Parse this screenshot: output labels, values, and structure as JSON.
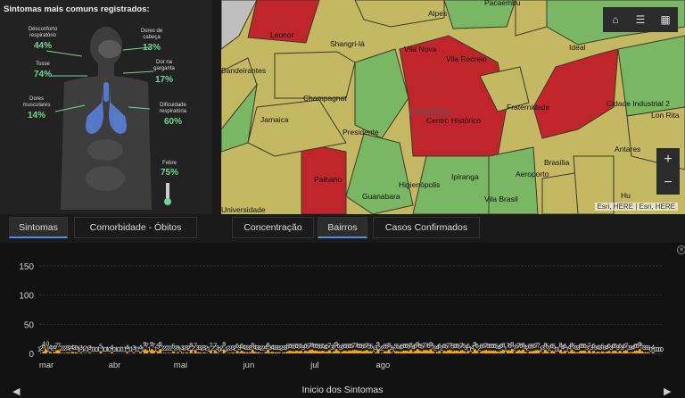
{
  "symptoms": {
    "title": "Sintomas mais comuns registrados:",
    "items": [
      {
        "label": "Desconforto respiratório",
        "value": "44%"
      },
      {
        "label": "Dores de cabeça",
        "value": "13%"
      },
      {
        "label": "Tosse",
        "value": "74%"
      },
      {
        "label": "Dor na garganta",
        "value": "17%"
      },
      {
        "label": "Dores musculares",
        "value": "14%"
      },
      {
        "label": "Dificuldade respiratória",
        "value": "60%"
      },
      {
        "label": "Febre",
        "value": "75%"
      }
    ]
  },
  "map": {
    "city_label": "Londrina",
    "neighborhoods": [
      "Alpes",
      "Pacaembu",
      "Leonor",
      "Shangri-lá",
      "Vila Nova",
      "Ideal",
      "Bandeirantes",
      "Vila Recreio",
      "Champagnat",
      "Fraternidade",
      "Cidade Industrial 2",
      "Lon Rita",
      "Jamaica",
      "Presidente",
      "Centro Histórico",
      "Antares",
      "Brasília",
      "Palhano",
      "Higienópolis",
      "Ipiranga",
      "Aeroporto",
      "Guanabara",
      "Vila Brasil",
      "Universidade",
      "Hu"
    ],
    "attribution": "Esri, HERE | Esri, HERE",
    "colors": {
      "high": "#c0252c",
      "medium": "#c4b863",
      "low": "#79b765",
      "none": "#bfbfbf"
    }
  },
  "tabs_left": [
    {
      "label": "Sintomas",
      "active": true
    },
    {
      "label": "Comorbidade - Óbitos",
      "active": false
    }
  ],
  "tabs_right": [
    {
      "label": "Concentração",
      "active": false
    },
    {
      "label": "Bairros",
      "active": true
    },
    {
      "label": "Casos Confirmados",
      "active": false
    }
  ],
  "chart_data": {
    "type": "area",
    "xlabel": "Inicio dos Sintomas",
    "ylim": [
      0,
      150
    ],
    "yticks": [
      0,
      50,
      100,
      150
    ],
    "month_labels": [
      "mar",
      "abr",
      "mai",
      "jun",
      "jul",
      "ago"
    ],
    "month_day_index": [
      0,
      31,
      61,
      92,
      122,
      153
    ],
    "color": "#f5a800",
    "values": [
      1,
      2,
      5,
      10,
      1,
      4,
      2,
      4,
      7,
      7,
      2,
      2,
      2,
      3,
      2,
      4,
      3,
      3,
      1,
      3,
      1,
      2,
      1,
      3,
      1,
      1,
      0,
      1,
      5,
      1,
      0,
      1,
      0,
      4,
      0,
      1,
      0,
      1,
      1,
      1,
      4,
      1,
      1,
      3,
      1,
      1,
      4,
      1,
      9,
      7,
      1,
      9,
      7,
      1,
      5,
      9,
      2,
      2,
      2,
      2,
      2,
      5,
      2,
      3,
      1,
      3,
      2,
      3,
      2,
      8,
      2,
      7,
      3,
      3,
      2,
      3,
      2,
      1,
      7,
      2,
      7,
      3,
      0,
      2,
      9,
      1,
      2,
      2,
      3,
      2,
      6,
      3,
      6,
      4,
      3,
      3,
      3,
      8,
      4,
      3,
      3,
      2,
      2,
      4,
      8,
      3,
      4,
      3,
      3,
      3,
      2,
      3,
      3,
      5,
      6,
      5,
      5,
      6,
      5,
      6,
      3,
      6,
      5,
      7,
      8,
      6,
      6,
      5,
      5,
      6,
      4,
      5,
      7,
      3,
      5,
      9,
      6,
      3,
      5,
      6,
      5,
      6,
      6,
      7,
      7,
      6,
      6,
      5,
      6,
      7,
      5,
      5,
      1,
      3,
      9,
      2,
      2,
      5,
      5,
      8,
      3,
      1,
      5,
      5,
      4,
      5,
      6,
      6,
      5,
      8,
      4,
      6,
      9,
      6,
      5,
      7,
      7,
      6,
      9,
      5,
      2,
      4,
      6,
      2,
      6,
      5,
      7,
      7,
      5,
      6,
      6,
      5,
      7,
      6,
      3,
      6,
      1,
      4,
      9,
      6,
      2,
      5,
      6,
      7,
      6,
      6,
      6,
      6,
      5,
      4,
      6,
      8,
      1,
      7,
      6,
      9,
      2,
      5,
      7,
      6,
      8,
      4,
      2,
      5,
      5,
      6,
      7,
      7,
      1,
      3,
      8,
      5,
      2,
      6,
      5,
      0,
      1,
      8,
      4,
      6,
      1,
      4,
      8,
      5,
      3,
      3,
      6,
      6,
      6,
      3,
      7,
      3,
      6,
      3,
      4,
      3,
      5,
      3,
      4,
      6,
      3,
      6,
      6,
      3,
      6,
      3,
      6,
      7,
      3,
      3,
      4,
      6,
      6,
      9,
      5,
      3,
      3,
      3,
      0,
      4,
      0,
      0,
      0,
      0
    ]
  }
}
